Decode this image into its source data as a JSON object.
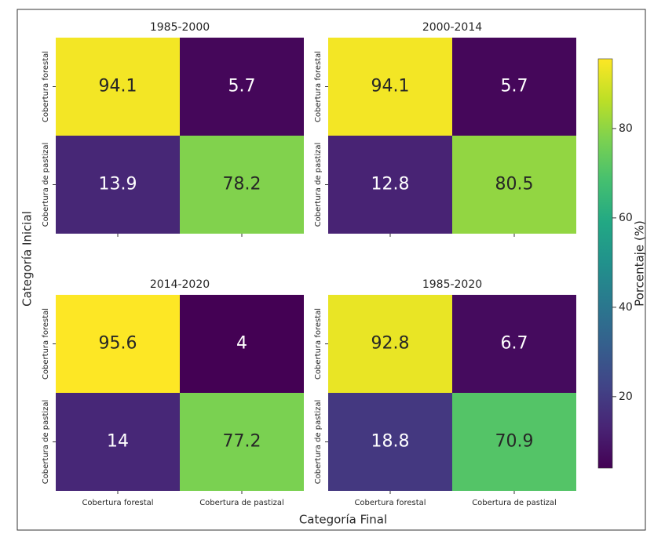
{
  "chart_data": [
    {
      "type": "heatmap",
      "title": "1985-2000",
      "y_categories": [
        "Cobertura forestal",
        "Cobertura de pastizal"
      ],
      "values": [
        [
          94.1,
          5.7
        ],
        [
          13.9,
          78.2
        ]
      ]
    },
    {
      "type": "heatmap",
      "title": "2000-2014",
      "y_categories": [
        "Cobertura forestal",
        "Cobertura de pastizal"
      ],
      "values": [
        [
          94.1,
          5.7
        ],
        [
          12.8,
          80.5
        ]
      ]
    },
    {
      "type": "heatmap",
      "title": "2014-2020",
      "x_categories": [
        "Cobertura forestal",
        "Cobertura de pastizal"
      ],
      "y_categories": [
        "Cobertura forestal",
        "Cobertura de pastizal"
      ],
      "values": [
        [
          95.6,
          4.0
        ],
        [
          14.0,
          77.2
        ]
      ]
    },
    {
      "type": "heatmap",
      "title": "1985-2020",
      "x_categories": [
        "Cobertura forestal",
        "Cobertura de pastizal"
      ],
      "y_categories": [
        "Cobertura forestal",
        "Cobertura de pastizal"
      ],
      "values": [
        [
          92.8,
          6.7
        ],
        [
          18.8,
          70.9
        ]
      ]
    }
  ],
  "figure": {
    "xlabel": "Categoría Final",
    "ylabel": "Categoría Inicial",
    "colorbar": {
      "label": "Porcentaje (%)",
      "colormap": "viridis",
      "lim": [
        4.0,
        95.6
      ],
      "ticks": [
        20,
        40,
        60,
        80
      ]
    }
  }
}
